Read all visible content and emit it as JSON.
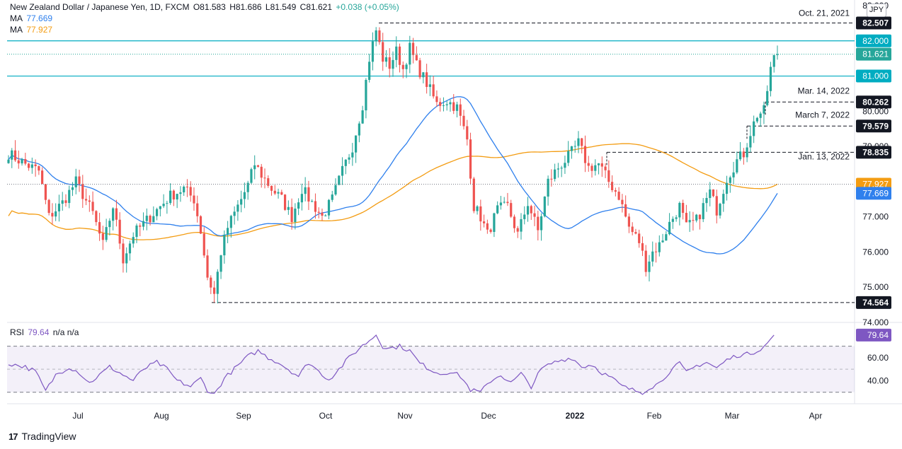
{
  "header": {
    "title": "New Zealand Dollar / Japanese Yen, 1D, FXCM",
    "open": "O81.583",
    "high": "H81.686",
    "low": "L81.549",
    "close": "C81.621",
    "change": "+0.038 (+0.05%)",
    "ma1_label": "MA",
    "ma1_value": "77.669",
    "ma2_label": "MA",
    "ma2_value": "77.927"
  },
  "currency": "JPY",
  "rsi": {
    "label": "RSI",
    "value": "79.64",
    "extra": "n/a  n/a",
    "levels": [
      40,
      60
    ]
  },
  "branding": "TradingView",
  "colors": {
    "up": "#26a69a",
    "down": "#ef5350",
    "ma_fast": "#2f80ed",
    "ma_slow": "#f39c12",
    "rsi": "#7e57c2",
    "level": "#00acc1"
  },
  "chart_data": {
    "type": "candlestick",
    "price_axis": {
      "ylim": [
        74.0,
        83.0
      ],
      "ticks": [
        "74.000",
        "75.000",
        "76.000",
        "77.000",
        "78.000",
        "79.000",
        "80.000",
        "81.000",
        "82.000",
        "83.000"
      ]
    },
    "time_axis": [
      "Jul",
      "Aug",
      "Sep",
      "Oct",
      "Nov",
      "Dec",
      "2022",
      "Feb",
      "Mar",
      "Apr"
    ],
    "horizontal_levels": [
      {
        "value": 82.0,
        "label": "82.000"
      },
      {
        "value": 81.0,
        "label": "81.000"
      }
    ],
    "annotations": [
      {
        "label": "Oct. 21, 2021",
        "value": 82.507,
        "value_label": "82.507"
      },
      {
        "label": "Mar. 14, 2022",
        "value": 80.262,
        "value_label": "80.262"
      },
      {
        "label": "March 7, 2022",
        "value": 79.579,
        "value_label": "79.579"
      },
      {
        "label": "Jan. 13, 2022",
        "value": 78.835,
        "value_label": "78.835"
      },
      {
        "label": "",
        "value": 74.564,
        "value_label": "74.564"
      }
    ],
    "last_price": {
      "value": 81.621,
      "label": "81.621"
    },
    "ma_fast_last": {
      "value": 77.669,
      "label": "77.669"
    },
    "ma_slow_last": {
      "value": 77.927,
      "label": "77.927"
    },
    "rsi_last": {
      "value": 79.64,
      "label": "79.64"
    },
    "rsi_ticks": [
      "40.00",
      "60.00"
    ],
    "rsi_bands": [
      30,
      70
    ],
    "anchors": [
      [
        0,
        78.8
      ],
      [
        5,
        78.5
      ],
      [
        9,
        78.3
      ],
      [
        12,
        77.0
      ],
      [
        16,
        77.4
      ],
      [
        20,
        78.0
      ],
      [
        25,
        77.1
      ],
      [
        28,
        76.2
      ],
      [
        31,
        77.3
      ],
      [
        34,
        75.8
      ],
      [
        37,
        76.5
      ],
      [
        40,
        76.8
      ],
      [
        44,
        77.2
      ],
      [
        48,
        77.6
      ],
      [
        52,
        77.8
      ],
      [
        55,
        77.5
      ],
      [
        57,
        76.6
      ],
      [
        59,
        75.3
      ],
      [
        61,
        74.8
      ],
      [
        63,
        76.0
      ],
      [
        65,
        76.7
      ],
      [
        68,
        77.3
      ],
      [
        71,
        77.9
      ],
      [
        73,
        78.5
      ],
      [
        75,
        78.2
      ],
      [
        78,
        77.8
      ],
      [
        81,
        77.5
      ],
      [
        84,
        77.0
      ],
      [
        87,
        77.8
      ],
      [
        90,
        77.4
      ],
      [
        93,
        77.0
      ],
      [
        96,
        77.5
      ],
      [
        99,
        78.3
      ],
      [
        102,
        79.0
      ],
      [
        105,
        80.2
      ],
      [
        107,
        81.5
      ],
      [
        109,
        82.3
      ],
      [
        111,
        81.5
      ],
      [
        113,
        81.3
      ],
      [
        115,
        81.7
      ],
      [
        117,
        81.2
      ],
      [
        119,
        81.8
      ],
      [
        121,
        81.3
      ],
      [
        124,
        80.8
      ],
      [
        127,
        80.2
      ],
      [
        130,
        80.3
      ],
      [
        133,
        80.1
      ],
      [
        136,
        79.2
      ],
      [
        138,
        77.3
      ],
      [
        140,
        77.0
      ],
      [
        142,
        76.5
      ],
      [
        145,
        77.2
      ],
      [
        148,
        77.3
      ],
      [
        151,
        76.5
      ],
      [
        154,
        77.4
      ],
      [
        157,
        76.6
      ],
      [
        160,
        78.0
      ],
      [
        163,
        78.4
      ],
      [
        166,
        78.7
      ],
      [
        169,
        79.1
      ],
      [
        172,
        78.4
      ],
      [
        175,
        78.5
      ],
      [
        178,
        78.0
      ],
      [
        181,
        77.6
      ],
      [
        184,
        76.7
      ],
      [
        187,
        76.3
      ],
      [
        189,
        75.6
      ],
      [
        191,
        76.0
      ],
      [
        193,
        76.2
      ],
      [
        196,
        76.8
      ],
      [
        199,
        77.3
      ],
      [
        201,
        76.7
      ],
      [
        204,
        76.9
      ],
      [
        206,
        77.3
      ],
      [
        208,
        77.7
      ],
      [
        210,
        77.2
      ],
      [
        213,
        78.1
      ],
      [
        216,
        78.6
      ],
      [
        218,
        78.8
      ],
      [
        220,
        79.4
      ],
      [
        222,
        79.9
      ],
      [
        224,
        80.0
      ],
      [
        226,
        81.2
      ],
      [
        227,
        81.5
      ],
      [
        228,
        81.62
      ]
    ],
    "rsi_anchors": [
      [
        0,
        55
      ],
      [
        5,
        52
      ],
      [
        8,
        48
      ],
      [
        11,
        31
      ],
      [
        14,
        45
      ],
      [
        18,
        52
      ],
      [
        21,
        47
      ],
      [
        24,
        38
      ],
      [
        27,
        45
      ],
      [
        30,
        52
      ],
      [
        34,
        45
      ],
      [
        37,
        40
      ],
      [
        40,
        50
      ],
      [
        44,
        56
      ],
      [
        47,
        50
      ],
      [
        50,
        40
      ],
      [
        54,
        35
      ],
      [
        57,
        42
      ],
      [
        59,
        32
      ],
      [
        61,
        28
      ],
      [
        64,
        42
      ],
      [
        68,
        53
      ],
      [
        71,
        61
      ],
      [
        74,
        66
      ],
      [
        77,
        60
      ],
      [
        80,
        56
      ],
      [
        83,
        50
      ],
      [
        86,
        44
      ],
      [
        89,
        56
      ],
      [
        92,
        48
      ],
      [
        95,
        41
      ],
      [
        98,
        50
      ],
      [
        101,
        60
      ],
      [
        104,
        68
      ],
      [
        107,
        75
      ],
      [
        109,
        80
      ],
      [
        111,
        70
      ],
      [
        113,
        68
      ],
      [
        116,
        70
      ],
      [
        119,
        66
      ],
      [
        122,
        55
      ],
      [
        125,
        50
      ],
      [
        128,
        46
      ],
      [
        131,
        48
      ],
      [
        134,
        44
      ],
      [
        137,
        32
      ],
      [
        140,
        30
      ],
      [
        143,
        40
      ],
      [
        146,
        45
      ],
      [
        149,
        38
      ],
      [
        152,
        46
      ],
      [
        155,
        35
      ],
      [
        158,
        50
      ],
      [
        161,
        55
      ],
      [
        164,
        58
      ],
      [
        167,
        60
      ],
      [
        170,
        52
      ],
      [
        173,
        54
      ],
      [
        176,
        47
      ],
      [
        179,
        42
      ],
      [
        182,
        35
      ],
      [
        185,
        32
      ],
      [
        188,
        30
      ],
      [
        190,
        34
      ],
      [
        193,
        38
      ],
      [
        196,
        48
      ],
      [
        199,
        55
      ],
      [
        201,
        47
      ],
      [
        204,
        53
      ],
      [
        207,
        56
      ],
      [
        210,
        51
      ],
      [
        213,
        58
      ],
      [
        216,
        62
      ],
      [
        219,
        63
      ],
      [
        222,
        66
      ],
      [
        225,
        72
      ],
      [
        227,
        79.64
      ]
    ]
  }
}
